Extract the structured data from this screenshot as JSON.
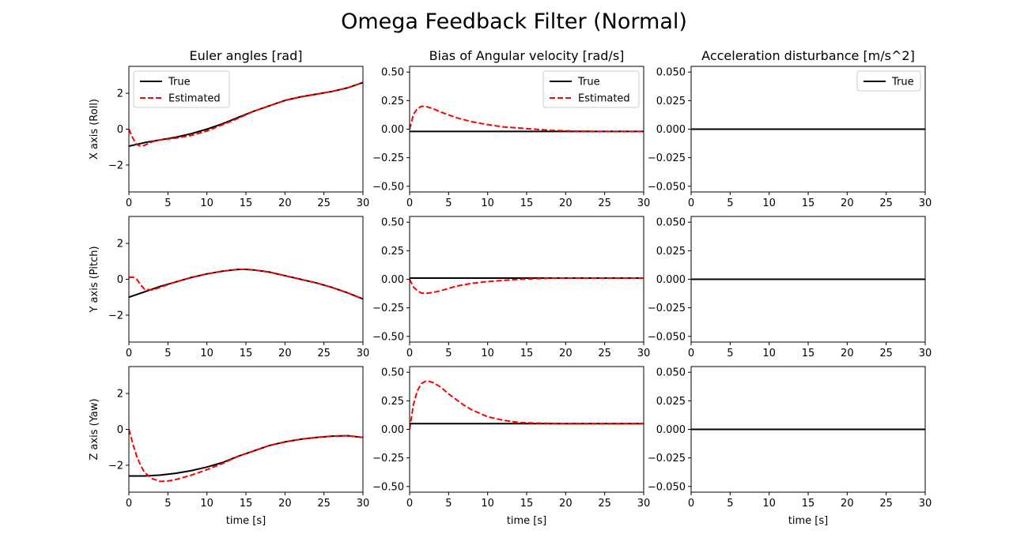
{
  "figure": {
    "title": "Omega Feedback Filter (Normal)",
    "colors": {
      "true": "#000000",
      "estimated": "#ff0000",
      "axes": "#000000"
    }
  },
  "chart_data": [
    {
      "id": "r0c0",
      "type": "line",
      "title": "Euler angles [rad]",
      "ylabel": "X axis (Roll)",
      "xlabel": "",
      "xlim": [
        0,
        30
      ],
      "ylim": [
        -3.5,
        3.5
      ],
      "xticks": [
        0,
        5,
        10,
        15,
        20,
        25,
        30
      ],
      "yticks": [
        -2,
        0,
        2
      ],
      "legend": {
        "placement": "upper-left",
        "entries": [
          "True",
          "Estimated"
        ]
      },
      "series": [
        {
          "name": "True",
          "style": "solid",
          "x": [
            0,
            2,
            4,
            6,
            8,
            10,
            12,
            14,
            16,
            18,
            20,
            22,
            24,
            26,
            28,
            30
          ],
          "y": [
            -0.95,
            -0.75,
            -0.6,
            -0.45,
            -0.25,
            0.0,
            0.3,
            0.65,
            1.0,
            1.3,
            1.6,
            1.8,
            1.95,
            2.1,
            2.3,
            2.6
          ]
        },
        {
          "name": "Estimated",
          "style": "dashed",
          "x": [
            0,
            0.5,
            1,
            1.5,
            2,
            3,
            4,
            6,
            8,
            10,
            12,
            14,
            16,
            18,
            20,
            22,
            24,
            26,
            28,
            30
          ],
          "y": [
            0.0,
            -0.5,
            -0.85,
            -0.95,
            -0.9,
            -0.7,
            -0.6,
            -0.5,
            -0.35,
            -0.1,
            0.25,
            0.6,
            1.0,
            1.3,
            1.6,
            1.8,
            1.95,
            2.1,
            2.3,
            2.6
          ]
        }
      ]
    },
    {
      "id": "r0c1",
      "type": "line",
      "title": "Bias of Angular velocity [rad/s]",
      "ylabel": "",
      "xlabel": "",
      "xlim": [
        0,
        30
      ],
      "ylim": [
        -0.55,
        0.55
      ],
      "xticks": [
        0,
        5,
        10,
        15,
        20,
        25,
        30
      ],
      "yticks": [
        -0.5,
        -0.25,
        0.0,
        0.25,
        0.5
      ],
      "yfmt": 2,
      "legend": {
        "placement": "upper-right",
        "entries": [
          "True",
          "Estimated"
        ]
      },
      "series": [
        {
          "name": "True",
          "style": "solid",
          "x": [
            0,
            30
          ],
          "y": [
            -0.02,
            -0.02
          ]
        },
        {
          "name": "Estimated",
          "style": "dashed",
          "x": [
            0,
            0.5,
            1,
            1.5,
            2,
            3,
            4,
            5,
            6,
            8,
            10,
            12,
            14,
            16,
            18,
            20,
            24,
            30
          ],
          "y": [
            0.0,
            0.13,
            0.18,
            0.2,
            0.2,
            0.18,
            0.15,
            0.125,
            0.1,
            0.065,
            0.04,
            0.02,
            0.01,
            0.0,
            -0.01,
            -0.015,
            -0.02,
            -0.02
          ]
        }
      ]
    },
    {
      "id": "r0c2",
      "type": "line",
      "title": "Acceleration disturbance [m/s^2]",
      "ylabel": "",
      "xlabel": "",
      "xlim": [
        0,
        30
      ],
      "ylim": [
        -0.055,
        0.055
      ],
      "xticks": [
        0,
        5,
        10,
        15,
        20,
        25,
        30
      ],
      "yticks": [
        -0.05,
        -0.025,
        0.0,
        0.025,
        0.05
      ],
      "yfmt": 3,
      "legend": {
        "placement": "upper-right",
        "entries": [
          "True"
        ]
      },
      "series": [
        {
          "name": "True",
          "style": "solid",
          "x": [
            0,
            30
          ],
          "y": [
            0,
            0
          ]
        }
      ]
    },
    {
      "id": "r1c0",
      "type": "line",
      "title": "",
      "ylabel": "Y axis (Pitch)",
      "xlabel": "",
      "xlim": [
        0,
        30
      ],
      "ylim": [
        -3.5,
        3.5
      ],
      "xticks": [
        0,
        5,
        10,
        15,
        20,
        25,
        30
      ],
      "yticks": [
        -2,
        0,
        2
      ],
      "series": [
        {
          "style": "solid",
          "x": [
            0,
            2,
            4,
            6,
            8,
            10,
            12,
            14,
            15,
            16,
            18,
            20,
            22,
            24,
            26,
            28,
            30
          ],
          "y": [
            -1.0,
            -0.7,
            -0.4,
            -0.15,
            0.1,
            0.3,
            0.45,
            0.55,
            0.55,
            0.52,
            0.4,
            0.2,
            0.0,
            -0.2,
            -0.45,
            -0.75,
            -1.1
          ]
        },
        {
          "style": "dashed",
          "x": [
            0,
            0.5,
            1,
            1.5,
            2,
            3,
            4,
            6,
            8,
            10,
            12,
            14,
            15,
            16,
            18,
            20,
            22,
            24,
            26,
            28,
            30
          ],
          "y": [
            0.1,
            0.12,
            0.0,
            -0.3,
            -0.55,
            -0.6,
            -0.45,
            -0.15,
            0.1,
            0.3,
            0.45,
            0.55,
            0.55,
            0.52,
            0.4,
            0.2,
            0.0,
            -0.2,
            -0.45,
            -0.75,
            -1.1
          ]
        }
      ]
    },
    {
      "id": "r1c1",
      "type": "line",
      "title": "",
      "ylabel": "",
      "xlabel": "",
      "xlim": [
        0,
        30
      ],
      "ylim": [
        -0.55,
        0.55
      ],
      "xticks": [
        0,
        5,
        10,
        15,
        20,
        25,
        30
      ],
      "yticks": [
        -0.5,
        -0.25,
        0.0,
        0.25,
        0.5
      ],
      "yfmt": 2,
      "series": [
        {
          "style": "solid",
          "x": [
            0,
            30
          ],
          "y": [
            0.01,
            0.01
          ]
        },
        {
          "style": "dashed",
          "x": [
            0,
            0.5,
            1,
            1.5,
            2,
            3,
            4,
            5,
            6,
            8,
            10,
            12,
            14,
            16,
            18,
            20,
            24,
            30
          ],
          "y": [
            0.0,
            -0.07,
            -0.1,
            -0.12,
            -0.125,
            -0.115,
            -0.1,
            -0.08,
            -0.06,
            -0.035,
            -0.02,
            -0.01,
            0.0,
            0.005,
            0.01,
            0.01,
            0.01,
            0.01
          ]
        }
      ]
    },
    {
      "id": "r1c2",
      "type": "line",
      "title": "",
      "ylabel": "",
      "xlabel": "",
      "xlim": [
        0,
        30
      ],
      "ylim": [
        -0.055,
        0.055
      ],
      "xticks": [
        0,
        5,
        10,
        15,
        20,
        25,
        30
      ],
      "yticks": [
        -0.05,
        -0.025,
        0.0,
        0.025,
        0.05
      ],
      "yfmt": 3,
      "series": [
        {
          "style": "solid",
          "x": [
            0,
            30
          ],
          "y": [
            0,
            0
          ]
        }
      ]
    },
    {
      "id": "r2c0",
      "type": "line",
      "title": "",
      "ylabel": "Z axis (Yaw)",
      "xlabel": "time [s]",
      "xlim": [
        0,
        30
      ],
      "ylim": [
        -3.5,
        3.5
      ],
      "xticks": [
        0,
        5,
        10,
        15,
        20,
        25,
        30
      ],
      "yticks": [
        -2,
        0,
        2
      ],
      "series": [
        {
          "style": "solid",
          "x": [
            0,
            1,
            2,
            4,
            6,
            8,
            10,
            12,
            14,
            16,
            18,
            20,
            22,
            24,
            26,
            28,
            30
          ],
          "y": [
            -2.6,
            -2.6,
            -2.6,
            -2.55,
            -2.45,
            -2.3,
            -2.1,
            -1.85,
            -1.5,
            -1.2,
            -0.9,
            -0.7,
            -0.55,
            -0.45,
            -0.38,
            -0.35,
            -0.45
          ]
        },
        {
          "style": "dashed",
          "x": [
            0,
            0.5,
            1,
            1.5,
            2,
            3,
            4,
            5,
            6,
            8,
            10,
            12,
            14,
            16,
            18,
            20,
            22,
            24,
            26,
            28,
            30
          ],
          "y": [
            0.0,
            -0.8,
            -1.5,
            -2.0,
            -2.4,
            -2.75,
            -2.9,
            -2.88,
            -2.8,
            -2.55,
            -2.25,
            -1.9,
            -1.5,
            -1.2,
            -0.9,
            -0.7,
            -0.55,
            -0.45,
            -0.38,
            -0.35,
            -0.45
          ]
        }
      ]
    },
    {
      "id": "r2c1",
      "type": "line",
      "title": "",
      "ylabel": "",
      "xlabel": "time [s]",
      "xlim": [
        0,
        30
      ],
      "ylim": [
        -0.55,
        0.55
      ],
      "xticks": [
        0,
        5,
        10,
        15,
        20,
        25,
        30
      ],
      "yticks": [
        -0.5,
        -0.25,
        0.0,
        0.25,
        0.5
      ],
      "yfmt": 2,
      "series": [
        {
          "style": "solid",
          "x": [
            0,
            30
          ],
          "y": [
            0.05,
            0.05
          ]
        },
        {
          "style": "dashed",
          "x": [
            0,
            0.5,
            1,
            1.5,
            2,
            2.5,
            3,
            4,
            5,
            6,
            7,
            8,
            10,
            12,
            14,
            16,
            20,
            30
          ],
          "y": [
            0.0,
            0.22,
            0.34,
            0.4,
            0.42,
            0.42,
            0.41,
            0.37,
            0.31,
            0.26,
            0.21,
            0.17,
            0.11,
            0.08,
            0.06,
            0.055,
            0.05,
            0.05
          ]
        }
      ]
    },
    {
      "id": "r2c2",
      "type": "line",
      "title": "",
      "ylabel": "",
      "xlabel": "time [s]",
      "xlim": [
        0,
        30
      ],
      "ylim": [
        -0.055,
        0.055
      ],
      "xticks": [
        0,
        5,
        10,
        15,
        20,
        25,
        30
      ],
      "yticks": [
        -0.05,
        -0.025,
        0.0,
        0.025,
        0.05
      ],
      "yfmt": 3,
      "series": [
        {
          "style": "solid",
          "x": [
            0,
            30
          ],
          "y": [
            0,
            0
          ]
        }
      ]
    }
  ]
}
